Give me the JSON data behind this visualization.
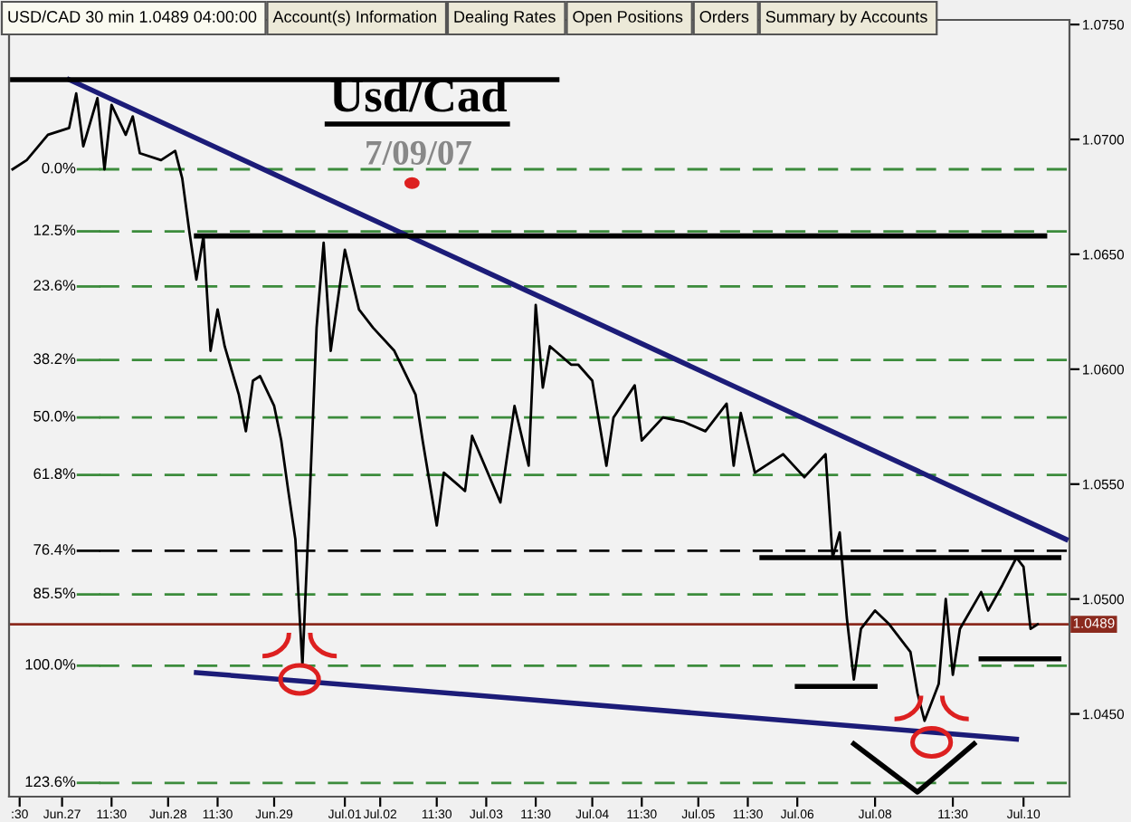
{
  "chart_data": {
    "type": "line",
    "title": "Usd/Cad",
    "subtitle": "7/09/07",
    "annotations": [
      "0.0%",
      "12.5%",
      "23.6%",
      "38.2%",
      "50.0%",
      "61.8%",
      "76.4%",
      "85.5%",
      "100.0%",
      "123.6%",
      "USD/CAD 30 min 1.0489 04:00:00",
      "Account(s) Information",
      "Dealing Rates",
      "Open Positions",
      "Orders",
      "Summary by Accounts"
    ],
    "categories": [
      null,
      ":30",
      null,
      null,
      null,
      null,
      null,
      "Jun.27",
      null,
      null,
      null,
      null,
      null,
      null,
      "11:30",
      null,
      null,
      null,
      null,
      null,
      null,
      null,
      "Jun.28",
      null,
      null,
      null,
      null,
      null,
      null,
      "11:30",
      null,
      null,
      null,
      null,
      null,
      null,
      null,
      "Jun.29",
      null,
      null,
      null,
      null,
      null,
      null,
      null,
      null,
      null,
      "Jul.01",
      null,
      null,
      null,
      null,
      "Jul.02",
      null,
      null,
      null,
      null,
      null,
      null,
      null,
      "11:30",
      null,
      null,
      null,
      null,
      null,
      null,
      "Jul.03",
      null,
      null,
      null,
      null,
      null,
      null,
      "11:30",
      null,
      null,
      null,
      null,
      null,
      null,
      null,
      "Jul.04",
      null,
      null,
      null,
      null,
      null,
      null,
      "11:30",
      null,
      null,
      null,
      null,
      null,
      null,
      null,
      "Jul.05",
      null,
      null,
      null,
      null,
      null,
      null,
      "11:30",
      null,
      null,
      null,
      null,
      null,
      null,
      "Jul.06",
      null,
      null,
      null,
      null,
      null,
      null,
      null,
      null,
      null,
      null,
      "Jul.08",
      null,
      null,
      null,
      null,
      null,
      null,
      null,
      null,
      null,
      null,
      "11:30",
      null,
      null,
      null,
      null,
      null,
      null,
      null,
      null,
      null,
      "Jul.10",
      null,
      null,
      null,
      null,
      null,
      null
    ],
    "series": [
      {
        "color": "#000000",
        "values": [
          1.0687,
          null,
          1.0691,
          null,
          null,
          1.0702,
          null,
          null,
          1.0705,
          1.072,
          1.0697,
          null,
          1.0718,
          1.0687,
          1.0715,
          null,
          1.0702,
          1.071,
          1.0694,
          null,
          null,
          1.0691,
          null,
          1.0695,
          1.0683,
          1.066,
          1.0639,
          1.0658,
          1.0608,
          1.0626,
          1.061,
          null,
          1.0589,
          1.0573,
          1.0595,
          1.0597,
          null,
          1.0584,
          1.0569,
          1.0547,
          1.0526,
          1.0471,
          1.0542,
          1.0618,
          1.0655,
          1.0608,
          null,
          1.0652,
          null,
          1.0626,
          null,
          1.0618,
          null,
          null,
          1.0608,
          null,
          null,
          1.0589,
          1.0569,
          null,
          1.0532,
          1.0555,
          null,
          null,
          1.0547,
          1.0571,
          null,
          null,
          null,
          1.0542,
          null,
          1.0584,
          null,
          1.0558,
          1.0628,
          1.0592,
          1.061,
          null,
          null,
          1.0602,
          1.0602,
          null,
          1.0595,
          null,
          1.0558,
          1.0579,
          null,
          null,
          1.0593,
          1.0569,
          null,
          null,
          1.0579,
          null,
          null,
          1.0577,
          null,
          null,
          1.0573,
          null,
          null,
          1.0585,
          1.0558,
          1.0581,
          null,
          1.0555,
          null,
          null,
          null,
          1.0563,
          null,
          null,
          1.0553,
          null,
          null,
          1.0563,
          1.0518,
          1.0529,
          1.0492,
          1.0465,
          1.0487,
          null,
          1.0495,
          null,
          1.0489,
          null,
          null,
          1.0477,
          1.0459,
          1.0447,
          null,
          1.0463,
          1.05,
          1.0467,
          1.0487,
          null,
          null,
          1.0503,
          1.0495,
          null,
          1.0506,
          null,
          1.0518,
          1.0514,
          1.0487,
          1.0489,
          null,
          null,
          null,
          null
        ]
      },
      {
        "color": "#1c1c78",
        "values": [
          null,
          null,
          null,
          null,
          null,
          null,
          null,
          null,
          1.0726,
          null,
          null,
          null,
          null,
          null,
          null,
          null,
          null,
          null,
          null,
          null,
          null,
          null,
          null,
          null,
          null,
          null,
          null,
          null,
          null,
          null,
          null,
          null,
          null,
          null,
          null,
          null,
          null,
          null,
          null,
          null,
          null,
          null,
          null,
          null,
          null,
          null,
          null,
          null,
          null,
          null,
          null,
          null,
          null,
          null,
          null,
          null,
          null,
          null,
          null,
          null,
          null,
          null,
          null,
          null,
          null,
          null,
          null,
          null,
          null,
          null,
          null,
          null,
          null,
          null,
          null,
          null,
          null,
          null,
          null,
          null,
          null,
          null,
          null,
          null,
          null,
          null,
          null,
          null,
          null,
          null,
          null,
          null,
          null,
          null,
          null,
          null,
          null,
          null,
          null,
          null,
          null,
          null,
          null,
          null,
          null,
          null,
          null,
          null,
          null,
          null,
          null,
          null,
          null,
          null,
          null,
          null,
          null,
          null,
          null,
          null,
          null,
          null,
          null,
          null,
          null,
          null,
          null,
          null,
          null,
          null,
          null,
          null,
          null,
          null,
          null,
          null,
          null,
          null,
          null,
          null,
          null,
          null,
          null,
          null,
          null,
          null,
          null,
          null,
          null,
          1.0526
        ]
      },
      {
        "color": "#1c1c78",
        "values": [
          null,
          null,
          null,
          null,
          null,
          null,
          null,
          null,
          null,
          null,
          null,
          null,
          null,
          null,
          null,
          null,
          null,
          null,
          null,
          null,
          null,
          null,
          null,
          null,
          null,
          null,
          1.0468,
          null,
          null,
          null,
          null,
          null,
          null,
          null,
          null,
          null,
          null,
          null,
          null,
          null,
          null,
          null,
          null,
          null,
          null,
          null,
          null,
          null,
          null,
          null,
          null,
          null,
          null,
          null,
          null,
          null,
          null,
          null,
          null,
          null,
          null,
          null,
          null,
          null,
          null,
          null,
          null,
          null,
          null,
          null,
          null,
          null,
          null,
          null,
          null,
          null,
          null,
          null,
          null,
          null,
          null,
          null,
          null,
          null,
          null,
          null,
          null,
          null,
          null,
          null,
          null,
          null,
          null,
          null,
          null,
          null,
          null,
          null,
          null,
          null,
          null,
          null,
          null,
          null,
          null,
          null,
          null,
          null,
          null,
          null,
          null,
          null,
          null,
          null,
          null,
          null,
          null,
          null,
          null,
          null,
          null,
          null,
          null,
          null,
          null,
          null,
          null,
          null,
          null,
          null,
          null,
          null,
          null,
          null,
          null,
          null,
          null,
          null,
          null,
          null,
          null,
          null,
          1.0439,
          null,
          null,
          null,
          null,
          null,
          null,
          null
        ]
      },
      {
        "color": "#000000",
        "values": [
          1.0726,
          null,
          null,
          null,
          null,
          null,
          null,
          null,
          null,
          null,
          null,
          null,
          null,
          null,
          null,
          null,
          null,
          null,
          null,
          null,
          null,
          null,
          null,
          null,
          null,
          null,
          null,
          null,
          null,
          null,
          null,
          null,
          null,
          null,
          null,
          null,
          null,
          null,
          null,
          null,
          null,
          null,
          null,
          null,
          null,
          null,
          null,
          null,
          null,
          null,
          null,
          null,
          null,
          null,
          null,
          null,
          null,
          null,
          null,
          null,
          null,
          null,
          null,
          null,
          null,
          null,
          null,
          null,
          null,
          null,
          null,
          null,
          null,
          null,
          null,
          null,
          null,
          1.0726,
          null,
          null,
          null,
          null,
          null,
          null,
          null,
          null,
          null,
          null,
          null,
          null,
          null,
          null,
          null,
          null,
          null,
          null,
          null,
          null,
          null,
          null,
          null,
          null,
          null,
          null,
          null,
          null,
          null,
          null,
          null,
          null,
          null,
          null,
          null,
          null,
          null,
          null,
          null,
          null,
          null,
          null,
          null,
          null,
          null,
          null,
          null,
          null,
          null,
          null,
          null,
          null,
          null,
          null,
          null,
          null,
          null,
          null,
          null,
          null,
          null,
          null,
          null,
          null,
          null,
          null,
          null,
          null,
          null,
          null,
          null,
          null
        ]
      },
      {
        "color": "#000000",
        "values": [
          null,
          null,
          null,
          null,
          null,
          null,
          null,
          null,
          null,
          null,
          null,
          null,
          null,
          null,
          null,
          null,
          null,
          null,
          null,
          null,
          null,
          null,
          null,
          null,
          null,
          null,
          1.0658,
          null,
          null,
          null,
          null,
          null,
          null,
          null,
          null,
          null,
          null,
          null,
          null,
          null,
          null,
          null,
          null,
          null,
          null,
          null,
          null,
          null,
          null,
          null,
          null,
          null,
          null,
          null,
          null,
          null,
          null,
          null,
          null,
          null,
          null,
          null,
          null,
          null,
          null,
          null,
          null,
          null,
          null,
          null,
          null,
          null,
          null,
          null,
          null,
          null,
          null,
          null,
          null,
          null,
          null,
          null,
          null,
          null,
          null,
          null,
          null,
          null,
          null,
          null,
          null,
          null,
          null,
          null,
          null,
          null,
          null,
          null,
          null,
          null,
          null,
          null,
          null,
          null,
          null,
          null,
          null,
          null,
          null,
          null,
          null,
          null,
          null,
          null,
          null,
          null,
          null,
          null,
          null,
          null,
          null,
          null,
          null,
          null,
          null,
          null,
          null,
          null,
          null,
          null,
          null,
          null,
          null,
          null,
          null,
          null,
          null,
          null,
          null,
          null,
          null,
          null,
          null,
          null,
          null,
          null,
          1.0658,
          null,
          null,
          null
        ]
      },
      {
        "color": "#000000",
        "values": [
          null,
          null,
          null,
          null,
          null,
          null,
          null,
          null,
          null,
          null,
          null,
          null,
          null,
          null,
          null,
          null,
          null,
          null,
          null,
          null,
          null,
          null,
          null,
          null,
          null,
          null,
          null,
          null,
          null,
          null,
          null,
          null,
          null,
          null,
          null,
          null,
          null,
          null,
          null,
          null,
          null,
          null,
          null,
          null,
          null,
          null,
          null,
          null,
          null,
          null,
          null,
          null,
          null,
          null,
          null,
          null,
          null,
          null,
          null,
          null,
          null,
          null,
          null,
          null,
          null,
          null,
          null,
          null,
          null,
          null,
          null,
          null,
          null,
          null,
          null,
          null,
          null,
          null,
          null,
          null,
          null,
          null,
          null,
          null,
          null,
          null,
          null,
          null,
          null,
          null,
          null,
          null,
          null,
          null,
          null,
          null,
          null,
          null,
          null,
          null,
          null,
          null,
          null,
          null,
          null,
          null,
          1.0518,
          null,
          null,
          null,
          null,
          null,
          null,
          null,
          null,
          null,
          null,
          null,
          null,
          null,
          null,
          null,
          null,
          null,
          null,
          null,
          null,
          null,
          null,
          null,
          null,
          null,
          null,
          null,
          null,
          null,
          null,
          null,
          null,
          null,
          null,
          null,
          null,
          null,
          null,
          null,
          null,
          null,
          1.0518,
          null
        ]
      },
      {
        "color": "#000000",
        "values": [
          null,
          null,
          null,
          null,
          null,
          null,
          null,
          null,
          null,
          null,
          null,
          null,
          null,
          null,
          null,
          null,
          null,
          null,
          null,
          null,
          null,
          null,
          null,
          null,
          null,
          null,
          null,
          null,
          null,
          null,
          null,
          null,
          null,
          null,
          null,
          null,
          null,
          null,
          null,
          null,
          null,
          null,
          null,
          null,
          null,
          null,
          null,
          null,
          null,
          null,
          null,
          null,
          null,
          null,
          null,
          null,
          null,
          null,
          null,
          null,
          null,
          null,
          null,
          null,
          null,
          null,
          null,
          null,
          null,
          null,
          null,
          null,
          null,
          null,
          null,
          null,
          null,
          null,
          null,
          null,
          null,
          null,
          null,
          null,
          null,
          null,
          null,
          null,
          null,
          null,
          null,
          null,
          null,
          null,
          null,
          null,
          null,
          null,
          null,
          null,
          null,
          null,
          null,
          null,
          null,
          null,
          null,
          null,
          null,
          null,
          null,
          1.0462,
          null,
          null,
          null,
          null,
          null,
          null,
          null,
          null,
          null,
          null,
          1.0462,
          null,
          null,
          null,
          null,
          null,
          null,
          null,
          null,
          null,
          null,
          null,
          null,
          null,
          null,
          null,
          null,
          null,
          null,
          null,
          null,
          null,
          null,
          null,
          null,
          null,
          null,
          null
        ]
      },
      {
        "color": "#000000",
        "values": [
          null,
          null,
          null,
          null,
          null,
          null,
          null,
          null,
          null,
          null,
          null,
          null,
          null,
          null,
          null,
          null,
          null,
          null,
          null,
          null,
          null,
          null,
          null,
          null,
          null,
          null,
          null,
          null,
          null,
          null,
          null,
          null,
          null,
          null,
          null,
          null,
          null,
          null,
          null,
          null,
          null,
          null,
          null,
          null,
          null,
          null,
          null,
          null,
          null,
          null,
          null,
          null,
          null,
          null,
          null,
          null,
          null,
          null,
          null,
          null,
          null,
          null,
          null,
          null,
          null,
          null,
          null,
          null,
          null,
          null,
          null,
          null,
          null,
          null,
          null,
          null,
          null,
          null,
          null,
          null,
          null,
          null,
          null,
          null,
          null,
          null,
          null,
          null,
          null,
          null,
          null,
          null,
          null,
          null,
          null,
          null,
          null,
          null,
          null,
          null,
          null,
          null,
          null,
          null,
          null,
          null,
          null,
          null,
          null,
          null,
          null,
          null,
          null,
          null,
          null,
          null,
          null,
          null,
          null,
          null,
          null,
          null,
          null,
          null,
          null,
          null,
          null,
          null,
          null,
          null,
          null,
          null,
          null,
          null,
          null,
          null,
          null,
          1.0474,
          null,
          null,
          null,
          null,
          null,
          null,
          null,
          null,
          null,
          null,
          1.0474,
          null
        ]
      },
      {
        "color": "#000000",
        "values": [
          null,
          null,
          null,
          null,
          null,
          null,
          null,
          null,
          null,
          null,
          null,
          null,
          null,
          null,
          null,
          null,
          null,
          null,
          null,
          null,
          null,
          null,
          null,
          null,
          null,
          null,
          null,
          null,
          null,
          null,
          null,
          null,
          null,
          null,
          null,
          null,
          null,
          null,
          null,
          null,
          null,
          null,
          null,
          null,
          null,
          null,
          null,
          null,
          null,
          null,
          null,
          null,
          null,
          null,
          null,
          null,
          null,
          null,
          null,
          null,
          null,
          null,
          null,
          null,
          null,
          null,
          null,
          null,
          null,
          null,
          null,
          null,
          null,
          null,
          null,
          null,
          null,
          null,
          null,
          null,
          null,
          null,
          null,
          null,
          null,
          null,
          null,
          null,
          null,
          null,
          null,
          null,
          null,
          null,
          null,
          null,
          null,
          null,
          null,
          null,
          null,
          null,
          null,
          null,
          null,
          null,
          null,
          null,
          null,
          null,
          null,
          null,
          null,
          null,
          null,
          null,
          null,
          null,
          null,
          1.0437,
          null,
          null,
          null,
          null,
          null,
          null,
          null,
          null,
          1.0416,
          null,
          null,
          null,
          null,
          null,
          null,
          null,
          1.0437,
          null,
          null,
          null,
          null,
          null,
          null,
          null,
          null,
          null,
          null,
          null,
          null,
          null
        ]
      }
    ],
    "ref_lines": [
      {
        "axis": "y",
        "value": 1.0687,
        "color": "#3c8c3c",
        "line_style": "dashed"
      },
      {
        "axis": "y",
        "value": 1.066,
        "color": "#3c8c3c",
        "line_style": "dashed"
      },
      {
        "axis": "y",
        "value": 1.0636,
        "color": "#3c8c3c",
        "line_style": "dashed"
      },
      {
        "axis": "y",
        "value": 1.0604,
        "color": "#3c8c3c",
        "line_style": "dashed"
      },
      {
        "axis": "y",
        "value": 1.0579,
        "color": "#3c8c3c",
        "line_style": "dashed"
      },
      {
        "axis": "y",
        "value": 1.0554,
        "color": "#3c8c3c",
        "line_style": "dashed"
      },
      {
        "axis": "y",
        "value": 1.0521,
        "color": "#000000",
        "line_style": "dashed"
      },
      {
        "axis": "y",
        "value": 1.0502,
        "color": "#3c8c3c",
        "line_style": "dashed"
      },
      {
        "axis": "y",
        "value": 1.0471,
        "color": "#3c8c3c",
        "line_style": "dashed"
      },
      {
        "axis": "y",
        "value": 1.042,
        "color": "#3c8c3c",
        "line_style": "dashed"
      },
      {
        "axis": "y",
        "value": 1.0489,
        "label": "1.0489",
        "color": "#8b2a1e",
        "line_style": "solid"
      }
    ],
    "ylim": [
      1.0414,
      1.0752
    ],
    "yticks": [
      {
        "value": 1.045,
        "label": "1.0450"
      },
      {
        "value": 1.05,
        "label": "1.0500"
      },
      {
        "value": 1.055,
        "label": "1.0550"
      },
      {
        "value": 1.06,
        "label": "1.0600"
      },
      {
        "value": 1.065,
        "label": "1.0650"
      },
      {
        "value": 1.07,
        "label": "1.0700"
      },
      {
        "value": 1.075,
        "label": "1.0750"
      }
    ],
    "grid": false,
    "legend": false,
    "marker": "none",
    "line_style": "solid"
  }
}
